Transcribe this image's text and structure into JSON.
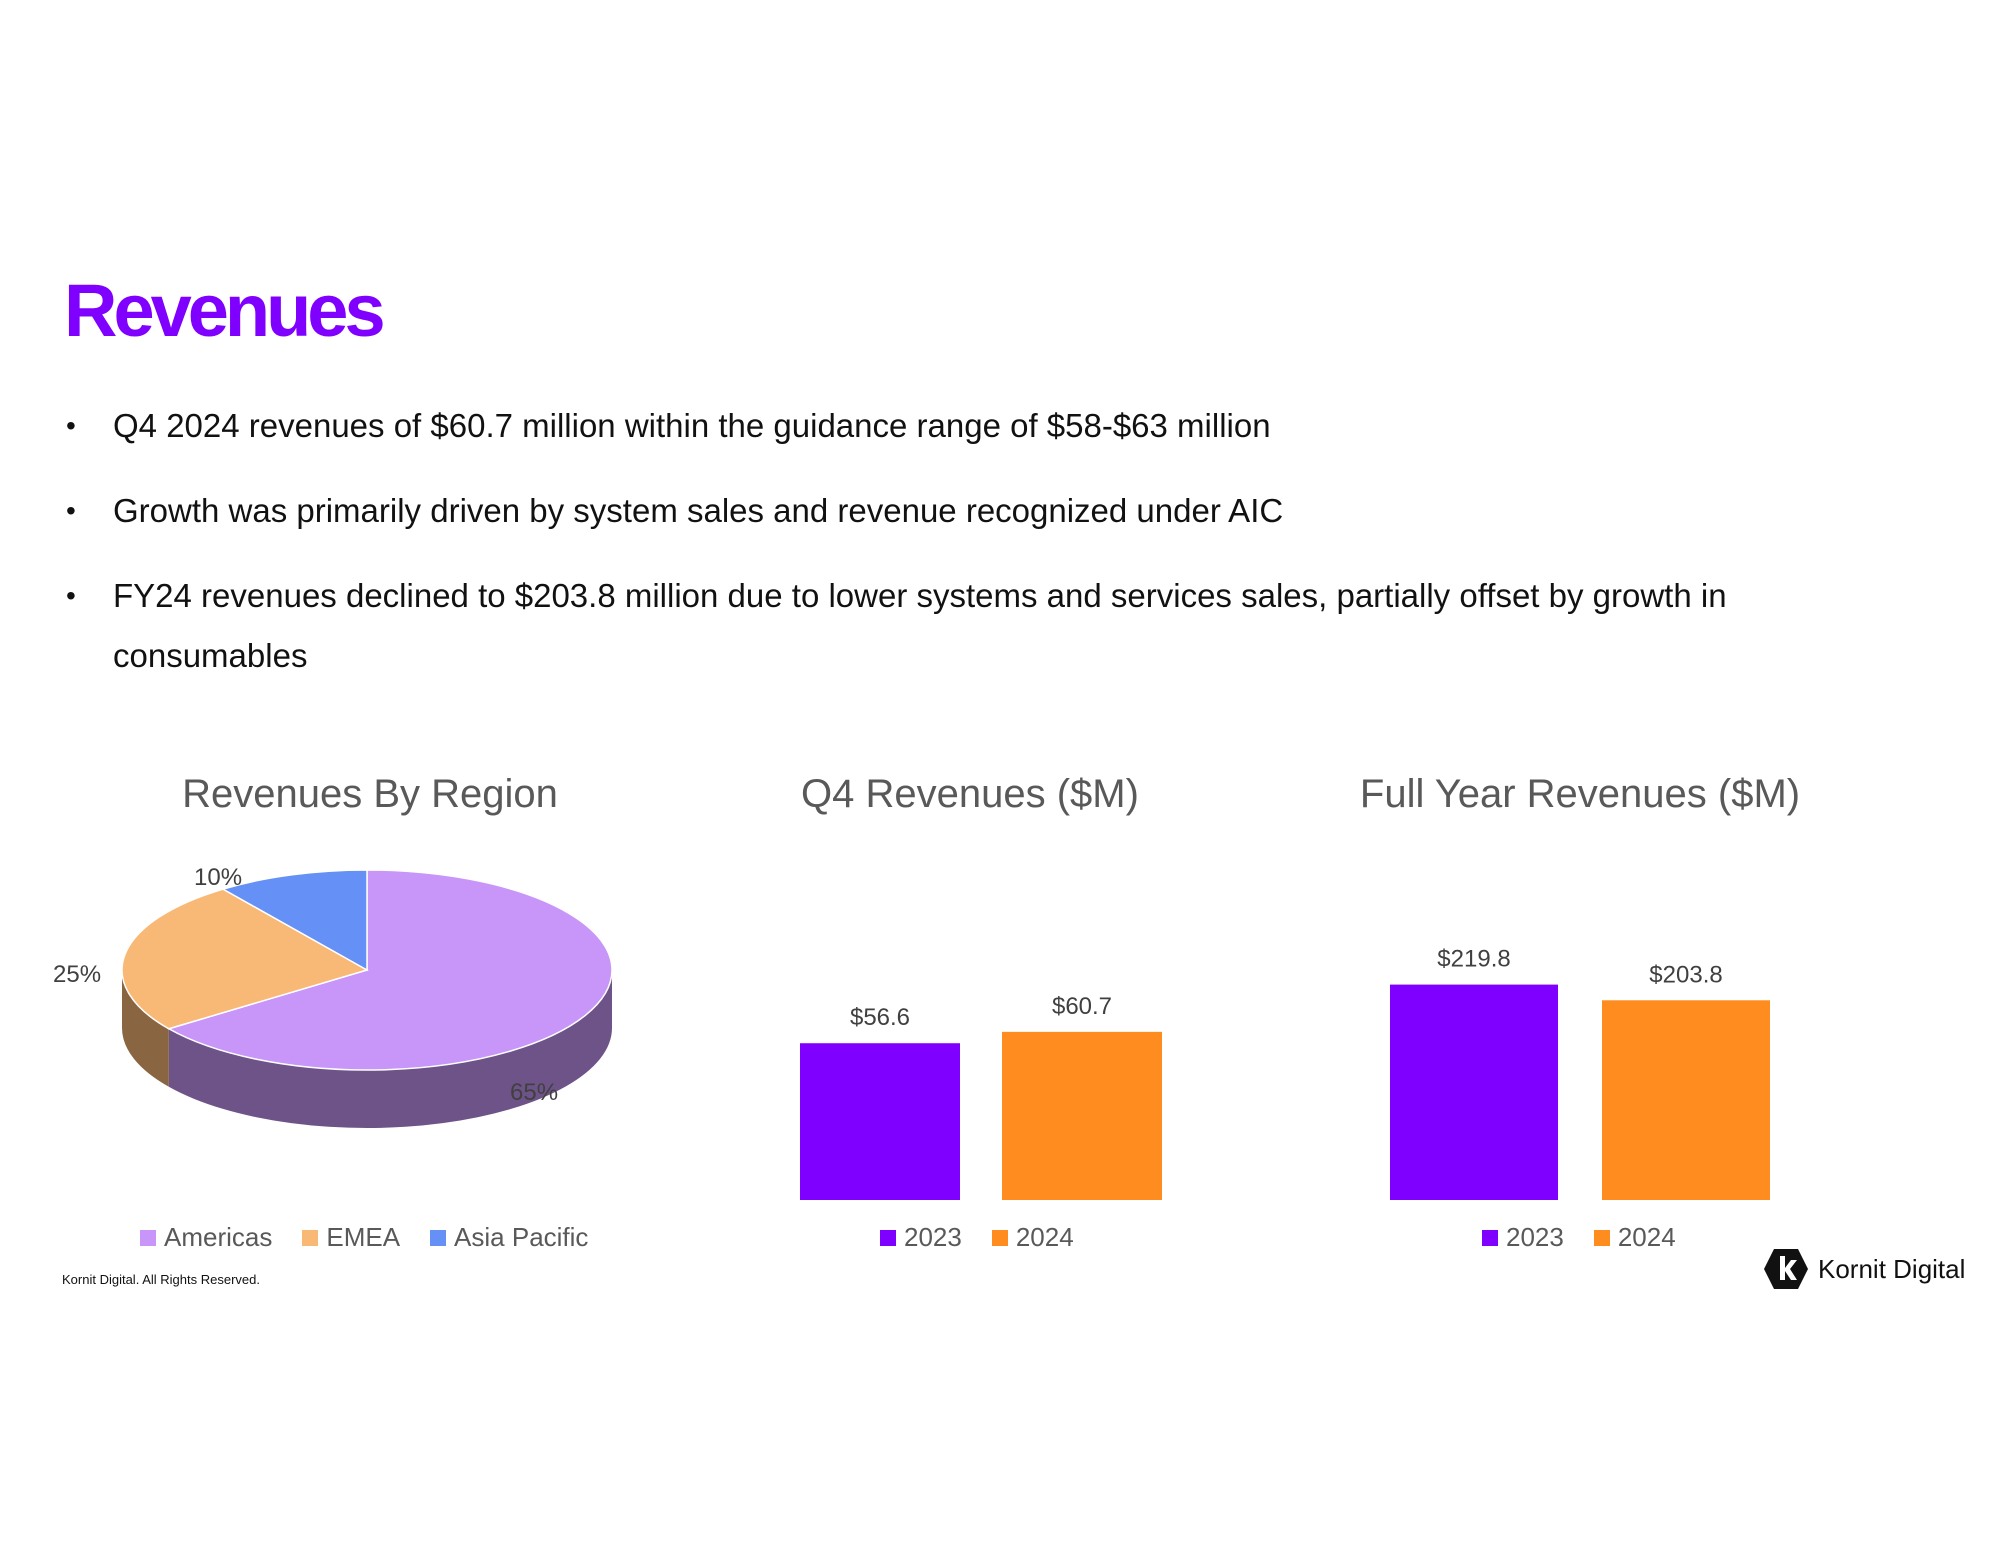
{
  "slide": {
    "title": "Revenues",
    "bullets": [
      "Q4 2024 revenues of $60.7 million within the guidance range of $58-$63 million",
      "Growth was primarily driven by system sales and revenue recognized under AIC",
      "FY24 revenues declined to $203.8 million due to lower systems and services sales, partially offset by growth in consumables"
    ],
    "bullet_symbol": "•",
    "footer": "Kornit Digital. All Rights Reserved.",
    "logo_text": "Kornit Digital"
  },
  "colors": {
    "title": "#8000ff",
    "americas": "#c896f8",
    "emea": "#f9b976",
    "asia_pacific": "#6590f5",
    "year_2023": "#8000ff",
    "year_2024": "#ff8c1e"
  },
  "chart_data": [
    {
      "type": "pie",
      "title": "Revenues By Region",
      "style": "3d",
      "categories": [
        "Americas",
        "EMEA",
        "Asia Pacific"
      ],
      "values": [
        65,
        25,
        10
      ],
      "labels": [
        "65%",
        "25%",
        "10%"
      ],
      "legend": "bottom"
    },
    {
      "type": "bar",
      "title": "Q4 Revenues ($M)",
      "categories": [
        "2023",
        "2024"
      ],
      "values": [
        56.6,
        60.7
      ],
      "labels": [
        "$56.6",
        "$60.7"
      ],
      "legend": "bottom"
    },
    {
      "type": "bar",
      "title": "Full Year Revenues ($M)",
      "categories": [
        "2023",
        "2024"
      ],
      "values": [
        219.8,
        203.8
      ],
      "labels": [
        "$219.8",
        "$203.8"
      ],
      "legend": "bottom"
    }
  ]
}
